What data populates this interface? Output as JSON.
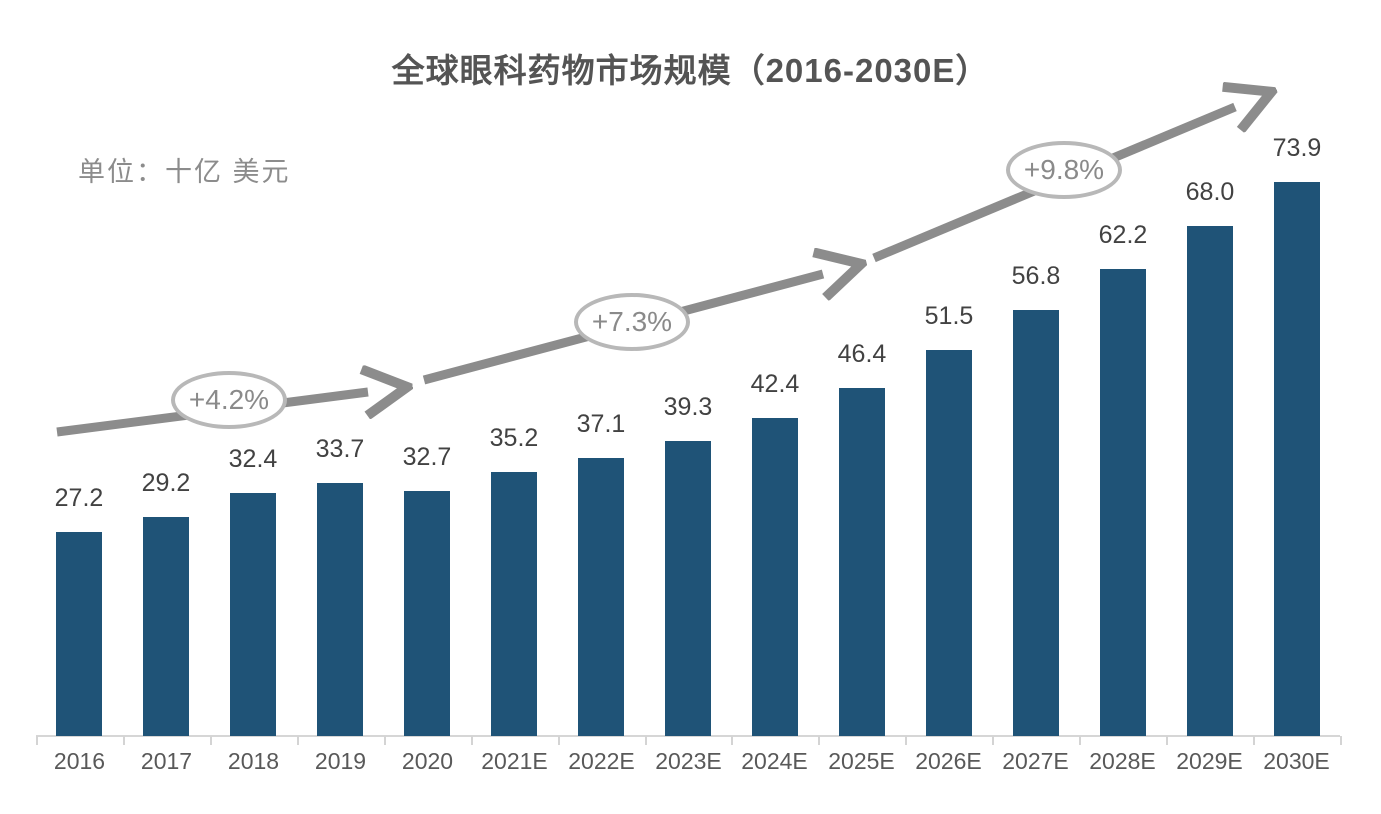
{
  "chart_data": {
    "type": "bar",
    "title": "全球眼科药物市场规模（2016-2030E）",
    "unit_label": "单位：十亿 美元",
    "categories": [
      "2016",
      "2017",
      "2018",
      "2019",
      "2020",
      "2021E",
      "2022E",
      "2023E",
      "2024E",
      "2025E",
      "2026E",
      "2027E",
      "2028E",
      "2029E",
      "2030E"
    ],
    "values": [
      27.2,
      29.2,
      32.4,
      33.7,
      32.7,
      35.2,
      37.1,
      39.3,
      42.4,
      46.4,
      51.5,
      56.8,
      62.2,
      68.0,
      73.9
    ],
    "annotations": [
      "+4.2%",
      "+7.3%",
      "+9.8%"
    ],
    "xlabel": "",
    "ylabel": "十亿美元",
    "ylim": [
      0,
      80
    ],
    "grid": false,
    "legend": "none",
    "value_labels_shown": true,
    "colors": {
      "bar": "#1F5377",
      "arrow": "#8C8C8C",
      "bubble_border": "#B8B8B8",
      "bubble_text": "#8A8A8A",
      "axis_line": "#D6D6D6",
      "value_label": "#424242",
      "axis_label": "#595959",
      "title": "#545454",
      "unit_label": "#8C8C8C"
    }
  }
}
